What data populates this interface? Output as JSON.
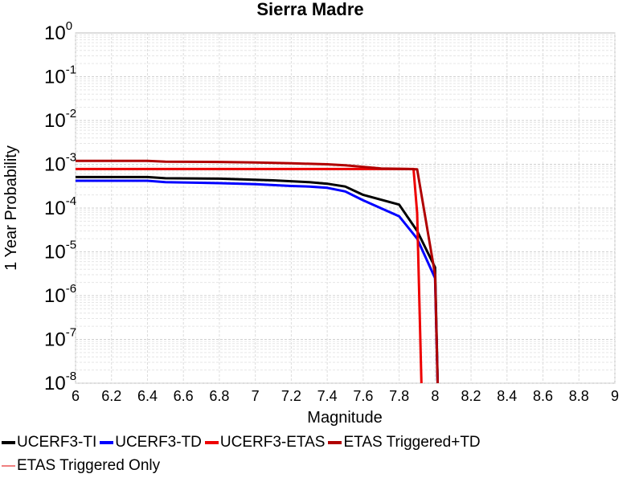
{
  "chart_data": {
    "type": "line",
    "title": "Sierra Madre",
    "xlabel": "Magnitude",
    "ylabel": "1 Year Probability",
    "xlim": [
      6,
      9
    ],
    "ylim": [
      1e-08,
      1
    ],
    "yscale": "log",
    "grid": true,
    "legend_position": "bottom",
    "x_ticks": [
      "6",
      "6.2",
      "6.4",
      "6.6",
      "6.8",
      "7",
      "7.2",
      "7.4",
      "7.6",
      "7.8",
      "8",
      "8.2",
      "8.4",
      "8.6",
      "8.8",
      "9"
    ],
    "y_ticks": [
      {
        "base": "10",
        "exp": "0"
      },
      {
        "base": "10",
        "exp": "-1"
      },
      {
        "base": "10",
        "exp": "-2"
      },
      {
        "base": "10",
        "exp": "-3"
      },
      {
        "base": "10",
        "exp": "-4"
      },
      {
        "base": "10",
        "exp": "-5"
      },
      {
        "base": "10",
        "exp": "-6"
      },
      {
        "base": "10",
        "exp": "-7"
      },
      {
        "base": "10",
        "exp": "-8"
      }
    ],
    "series": [
      {
        "name": "UCERF3-TI",
        "color": "#000000",
        "width": 3,
        "x": [
          6.0,
          6.4,
          6.5,
          6.8,
          7.1,
          7.3,
          7.4,
          7.5,
          7.6,
          7.8,
          7.9,
          8.0,
          8.02
        ],
        "y": [
          0.00051,
          0.00051,
          0.00048,
          0.00047,
          0.00043,
          0.00039,
          0.00036,
          0.00031,
          0.0002,
          0.00012,
          3e-05,
          4.4e-06,
          1e-09
        ]
      },
      {
        "name": "UCERF3-TD",
        "color": "#0000ff",
        "width": 3,
        "x": [
          6.0,
          6.4,
          6.5,
          6.8,
          7.0,
          7.2,
          7.3,
          7.4,
          7.5,
          7.6,
          7.8,
          7.9,
          8.0,
          8.02
        ],
        "y": [
          0.00042,
          0.00042,
          0.00039,
          0.00037,
          0.00035,
          0.00032,
          0.00031,
          0.00029,
          0.00024,
          0.00015,
          6.5e-05,
          2e-05,
          2.5e-06,
          1e-09
        ]
      },
      {
        "name": "UCERF3-ETAS",
        "color": "#ee0000",
        "width": 3,
        "x": [
          6.0,
          6.5,
          7.0,
          7.5,
          7.88,
          7.9,
          7.93
        ],
        "y": [
          0.00078,
          0.00078,
          0.00078,
          0.00078,
          0.00078,
          7.7e-05,
          1e-09
        ]
      },
      {
        "name": "ETAS Triggered+TD",
        "color": "#b00000",
        "width": 3,
        "x": [
          6.0,
          6.4,
          6.5,
          6.8,
          7.0,
          7.2,
          7.4,
          7.5,
          7.6,
          7.7,
          7.8,
          7.9,
          8.0,
          8.02
        ],
        "y": [
          0.0012,
          0.0012,
          0.00115,
          0.00113,
          0.0011,
          0.00105,
          0.001,
          0.00095,
          0.00087,
          0.0008,
          0.00079,
          0.00077,
          3e-06,
          1e-09
        ]
      },
      {
        "name": "ETAS Triggered Only",
        "color": "#f08080",
        "width": 1.5,
        "x": [],
        "y": []
      }
    ]
  }
}
